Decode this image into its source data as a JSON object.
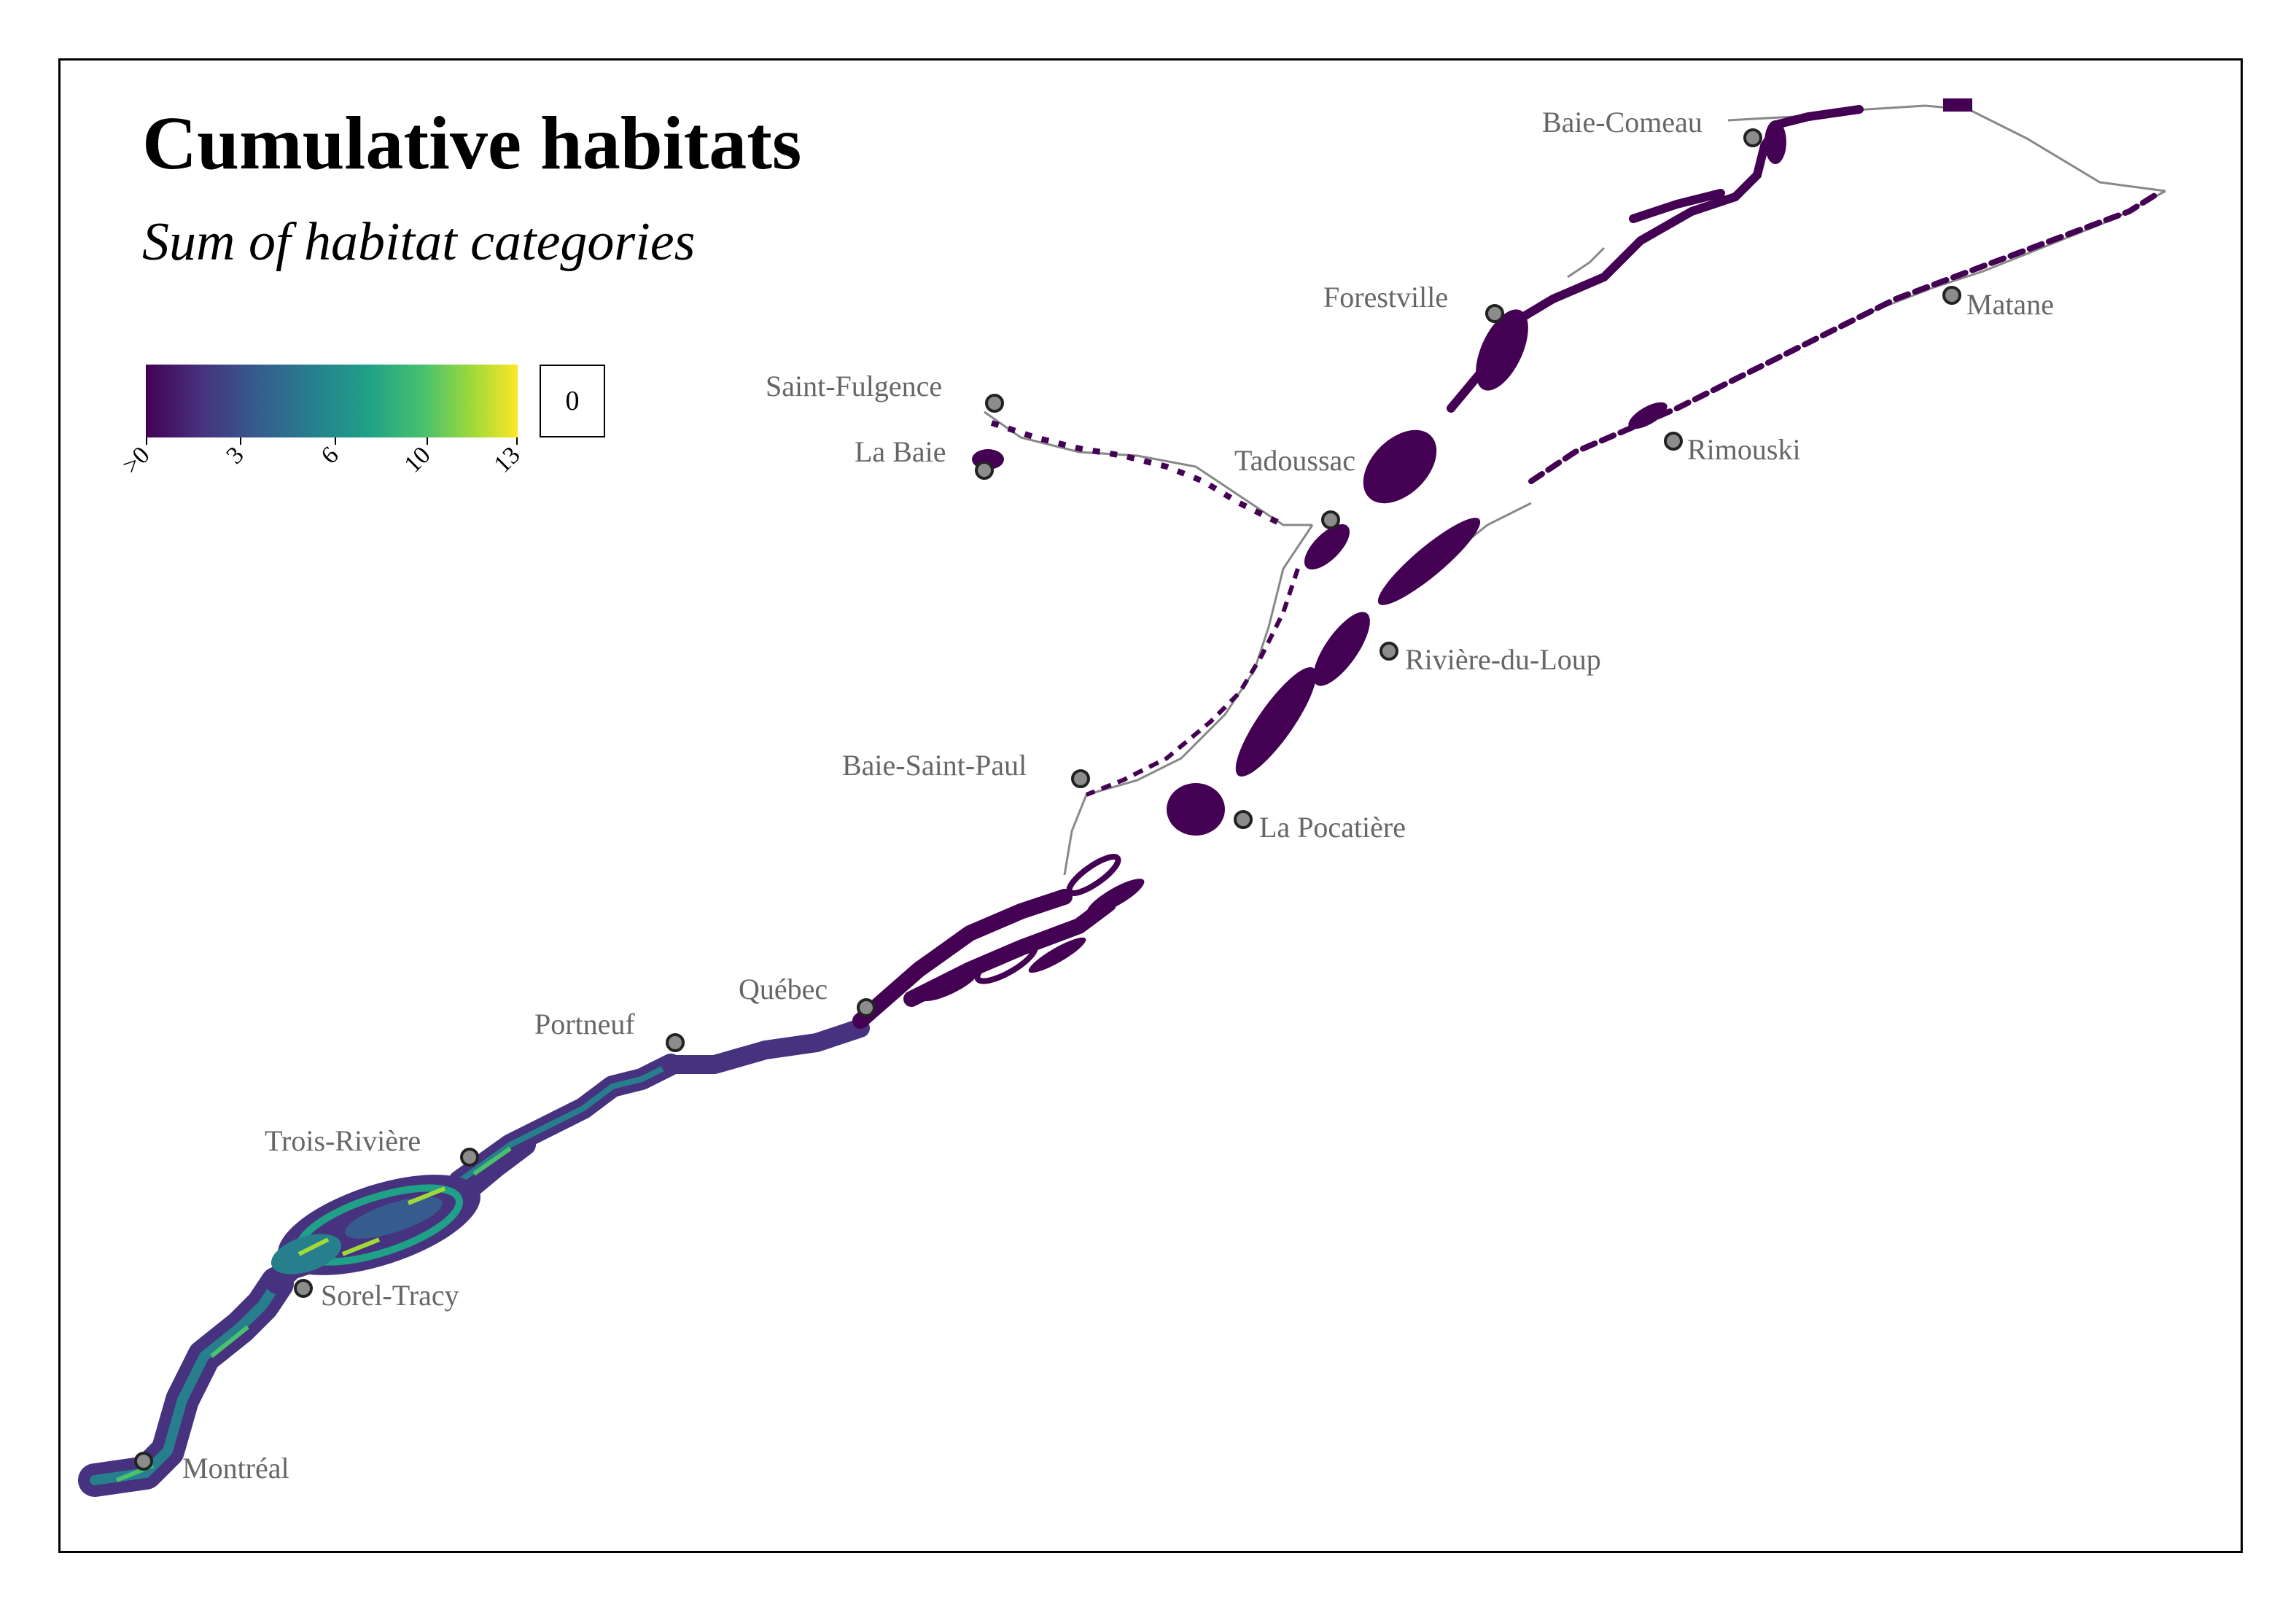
{
  "map": {
    "title": "Cumulative habitats",
    "subtitle": "Sum of habitat categories",
    "legend": {
      "palette": [
        "#440154",
        "#46327e",
        "#365c8d",
        "#277f8e",
        "#1fa187",
        "#4ac16d",
        "#a0da39",
        "#fde725"
      ],
      "tick_labels": [
        ">0",
        "3",
        "6",
        "10",
        "13"
      ],
      "zero_label": "0"
    },
    "cities": [
      {
        "name": "Baie-Comeau"
      },
      {
        "name": "Forestville"
      },
      {
        "name": "Matane"
      },
      {
        "name": "Saint-Fulgence"
      },
      {
        "name": "La Baie"
      },
      {
        "name": "Tadoussac"
      },
      {
        "name": "Rimouski"
      },
      {
        "name": "Rivière-du-Loup"
      },
      {
        "name": "Baie-Saint-Paul"
      },
      {
        "name": "La Pocatière"
      },
      {
        "name": "Québec"
      },
      {
        "name": "Portneuf"
      },
      {
        "name": "Trois-Rivière"
      },
      {
        "name": "Sorel-Tracy"
      },
      {
        "name": "Montréal"
      }
    ],
    "colors": {
      "water_low": "#440154",
      "water_mid": "#277f8e",
      "water_high": "#4ac16d",
      "coast_line": "#888888",
      "city_marker": "#8c8c8c",
      "label": "#666666"
    }
  }
}
